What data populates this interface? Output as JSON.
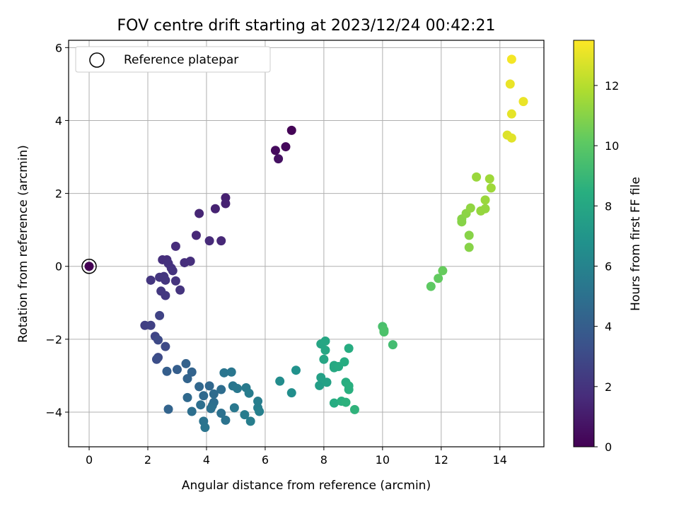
{
  "chart_data": {
    "type": "scatter",
    "title": "FOV centre drift starting at 2023/12/24 00:42:21",
    "xlabel": "Angular distance from reference (arcmin)",
    "ylabel": "Rotation from reference (arcmin)",
    "xlim": [
      -0.7,
      15.5
    ],
    "ylim": [
      -4.95,
      6.2
    ],
    "xticks": [
      "0",
      "2",
      "4",
      "6",
      "8",
      "10",
      "12",
      "14"
    ],
    "yticks": [
      "−4",
      "−2",
      "0",
      "2",
      "4",
      "6"
    ],
    "grid": true,
    "legend": {
      "placement": "top-left",
      "entries": [
        "Reference platepar"
      ]
    },
    "reference_point": {
      "x": 0,
      "y": 0,
      "c": 0
    },
    "colorbar": {
      "label": "Hours from first FF file",
      "range": [
        0,
        13.5
      ],
      "ticks": [
        "0",
        "2",
        "4",
        "6",
        "8",
        "10",
        "12"
      ],
      "colormap": "viridis"
    },
    "points": [
      {
        "x": 6.9,
        "y": 3.73,
        "c": 0.1
      },
      {
        "x": 6.7,
        "y": 3.28,
        "c": 0.3
      },
      {
        "x": 6.35,
        "y": 3.18,
        "c": 0.4
      },
      {
        "x": 6.45,
        "y": 2.95,
        "c": 0.6
      },
      {
        "x": 4.65,
        "y": 1.88,
        "c": 1.2
      },
      {
        "x": 4.65,
        "y": 1.72,
        "c": 1.25
      },
      {
        "x": 4.3,
        "y": 1.58,
        "c": 1.3
      },
      {
        "x": 3.75,
        "y": 1.45,
        "c": 1.4
      },
      {
        "x": 3.65,
        "y": 0.85,
        "c": 1.5
      },
      {
        "x": 4.1,
        "y": 0.7,
        "c": 1.6
      },
      {
        "x": 4.5,
        "y": 0.7,
        "c": 1.5
      },
      {
        "x": 2.95,
        "y": 0.55,
        "c": 1.7
      },
      {
        "x": 2.5,
        "y": 0.18,
        "c": 1.8
      },
      {
        "x": 2.65,
        "y": 0.18,
        "c": 1.8
      },
      {
        "x": 2.7,
        "y": 0.08,
        "c": 1.9
      },
      {
        "x": 2.8,
        "y": -0.05,
        "c": 1.9
      },
      {
        "x": 3.25,
        "y": 0.1,
        "c": 1.8
      },
      {
        "x": 3.45,
        "y": 0.14,
        "c": 1.8
      },
      {
        "x": 2.85,
        "y": -0.12,
        "c": 2.0
      },
      {
        "x": 2.4,
        "y": -0.3,
        "c": 2.1
      },
      {
        "x": 2.55,
        "y": -0.28,
        "c": 2.1
      },
      {
        "x": 2.6,
        "y": -0.38,
        "c": 2.1
      },
      {
        "x": 2.1,
        "y": -0.38,
        "c": 2.1
      },
      {
        "x": 2.95,
        "y": -0.4,
        "c": 2.0
      },
      {
        "x": 2.45,
        "y": -0.68,
        "c": 2.2
      },
      {
        "x": 3.1,
        "y": -0.65,
        "c": 2.0
      },
      {
        "x": 2.6,
        "y": -0.8,
        "c": 2.2
      },
      {
        "x": 2.4,
        "y": -1.35,
        "c": 2.7
      },
      {
        "x": 1.9,
        "y": -1.62,
        "c": 2.5
      },
      {
        "x": 2.1,
        "y": -1.62,
        "c": 2.6
      },
      {
        "x": 2.25,
        "y": -1.92,
        "c": 2.8
      },
      {
        "x": 2.35,
        "y": -2.02,
        "c": 3.0
      },
      {
        "x": 2.6,
        "y": -2.2,
        "c": 3.0
      },
      {
        "x": 2.35,
        "y": -2.5,
        "c": 3.0
      },
      {
        "x": 2.3,
        "y": -2.55,
        "c": 3.2
      },
      {
        "x": 2.65,
        "y": -2.88,
        "c": 4.0
      },
      {
        "x": 3.0,
        "y": -2.83,
        "c": 4.0
      },
      {
        "x": 3.3,
        "y": -2.67,
        "c": 4.2
      },
      {
        "x": 3.5,
        "y": -2.9,
        "c": 4.3
      },
      {
        "x": 3.35,
        "y": -3.08,
        "c": 4.3
      },
      {
        "x": 3.75,
        "y": -3.3,
        "c": 4.5
      },
      {
        "x": 4.1,
        "y": -3.28,
        "c": 4.5
      },
      {
        "x": 3.35,
        "y": -3.6,
        "c": 4.6
      },
      {
        "x": 3.9,
        "y": -3.55,
        "c": 4.6
      },
      {
        "x": 4.25,
        "y": -3.5,
        "c": 4.7
      },
      {
        "x": 4.5,
        "y": -3.38,
        "c": 4.8
      },
      {
        "x": 4.25,
        "y": -3.73,
        "c": 4.8
      },
      {
        "x": 3.8,
        "y": -3.8,
        "c": 4.9
      },
      {
        "x": 4.2,
        "y": -3.82,
        "c": 4.9
      },
      {
        "x": 4.15,
        "y": -3.9,
        "c": 5.0
      },
      {
        "x": 3.5,
        "y": -3.98,
        "c": 4.9
      },
      {
        "x": 4.5,
        "y": -4.03,
        "c": 5.0
      },
      {
        "x": 3.9,
        "y": -4.25,
        "c": 5.1
      },
      {
        "x": 4.65,
        "y": -4.22,
        "c": 5.1
      },
      {
        "x": 3.95,
        "y": -4.42,
        "c": 5.2
      },
      {
        "x": 2.7,
        "y": -3.92,
        "c": 4.3
      },
      {
        "x": 4.6,
        "y": -2.92,
        "c": 5.2
      },
      {
        "x": 4.85,
        "y": -2.9,
        "c": 5.3
      },
      {
        "x": 4.9,
        "y": -3.28,
        "c": 5.3
      },
      {
        "x": 5.05,
        "y": -3.35,
        "c": 5.4
      },
      {
        "x": 4.95,
        "y": -3.88,
        "c": 5.4
      },
      {
        "x": 5.35,
        "y": -3.33,
        "c": 5.5
      },
      {
        "x": 5.45,
        "y": -3.48,
        "c": 5.6
      },
      {
        "x": 5.75,
        "y": -3.7,
        "c": 5.7
      },
      {
        "x": 5.75,
        "y": -3.88,
        "c": 5.7
      },
      {
        "x": 5.8,
        "y": -3.98,
        "c": 5.8
      },
      {
        "x": 5.3,
        "y": -4.07,
        "c": 5.6
      },
      {
        "x": 5.5,
        "y": -4.25,
        "c": 5.7
      },
      {
        "x": 6.5,
        "y": -3.15,
        "c": 6.5
      },
      {
        "x": 6.9,
        "y": -3.47,
        "c": 6.6
      },
      {
        "x": 7.05,
        "y": -2.85,
        "c": 6.8
      },
      {
        "x": 7.85,
        "y": -3.27,
        "c": 7.5
      },
      {
        "x": 7.9,
        "y": -3.05,
        "c": 7.6
      },
      {
        "x": 8.1,
        "y": -3.18,
        "c": 7.7
      },
      {
        "x": 7.9,
        "y": -2.13,
        "c": 7.9
      },
      {
        "x": 8.05,
        "y": -2.05,
        "c": 8.0
      },
      {
        "x": 8.05,
        "y": -2.3,
        "c": 8.0
      },
      {
        "x": 8.0,
        "y": -2.55,
        "c": 7.9
      },
      {
        "x": 8.35,
        "y": -2.72,
        "c": 8.1
      },
      {
        "x": 8.35,
        "y": -2.78,
        "c": 8.1
      },
      {
        "x": 8.5,
        "y": -2.75,
        "c": 8.2
      },
      {
        "x": 8.7,
        "y": -2.62,
        "c": 8.3
      },
      {
        "x": 8.85,
        "y": -2.25,
        "c": 8.3
      },
      {
        "x": 8.75,
        "y": -3.18,
        "c": 8.4
      },
      {
        "x": 8.85,
        "y": -3.28,
        "c": 8.5
      },
      {
        "x": 8.85,
        "y": -3.38,
        "c": 8.5
      },
      {
        "x": 8.35,
        "y": -3.75,
        "c": 8.3
      },
      {
        "x": 8.6,
        "y": -3.7,
        "c": 8.5
      },
      {
        "x": 8.75,
        "y": -3.73,
        "c": 8.6
      },
      {
        "x": 9.05,
        "y": -3.93,
        "c": 8.7
      },
      {
        "x": 10.0,
        "y": -1.65,
        "c": 9.5
      },
      {
        "x": 10.05,
        "y": -1.75,
        "c": 9.6
      },
      {
        "x": 10.05,
        "y": -1.8,
        "c": 9.6
      },
      {
        "x": 10.35,
        "y": -2.15,
        "c": 9.3
      },
      {
        "x": 11.65,
        "y": -0.55,
        "c": 10.1
      },
      {
        "x": 11.9,
        "y": -0.33,
        "c": 10.2
      },
      {
        "x": 12.05,
        "y": -0.12,
        "c": 10.3
      },
      {
        "x": 12.7,
        "y": 1.22,
        "c": 11.0
      },
      {
        "x": 12.7,
        "y": 1.3,
        "c": 11.0
      },
      {
        "x": 12.85,
        "y": 1.45,
        "c": 11.1
      },
      {
        "x": 12.95,
        "y": 0.85,
        "c": 11.0
      },
      {
        "x": 12.95,
        "y": 0.52,
        "c": 11.0
      },
      {
        "x": 13.0,
        "y": 1.6,
        "c": 11.2
      },
      {
        "x": 13.2,
        "y": 2.45,
        "c": 11.4
      },
      {
        "x": 13.35,
        "y": 1.52,
        "c": 11.3
      },
      {
        "x": 13.5,
        "y": 1.58,
        "c": 11.3
      },
      {
        "x": 13.5,
        "y": 1.82,
        "c": 11.4
      },
      {
        "x": 13.65,
        "y": 2.4,
        "c": 11.5
      },
      {
        "x": 13.7,
        "y": 2.15,
        "c": 11.5
      },
      {
        "x": 14.25,
        "y": 3.6,
        "c": 12.8
      },
      {
        "x": 14.4,
        "y": 3.52,
        "c": 12.9
      },
      {
        "x": 14.4,
        "y": 4.18,
        "c": 13.0
      },
      {
        "x": 14.35,
        "y": 5.0,
        "c": 13.1
      },
      {
        "x": 14.4,
        "y": 5.68,
        "c": 13.3
      },
      {
        "x": 14.8,
        "y": 4.52,
        "c": 13.1
      }
    ]
  }
}
